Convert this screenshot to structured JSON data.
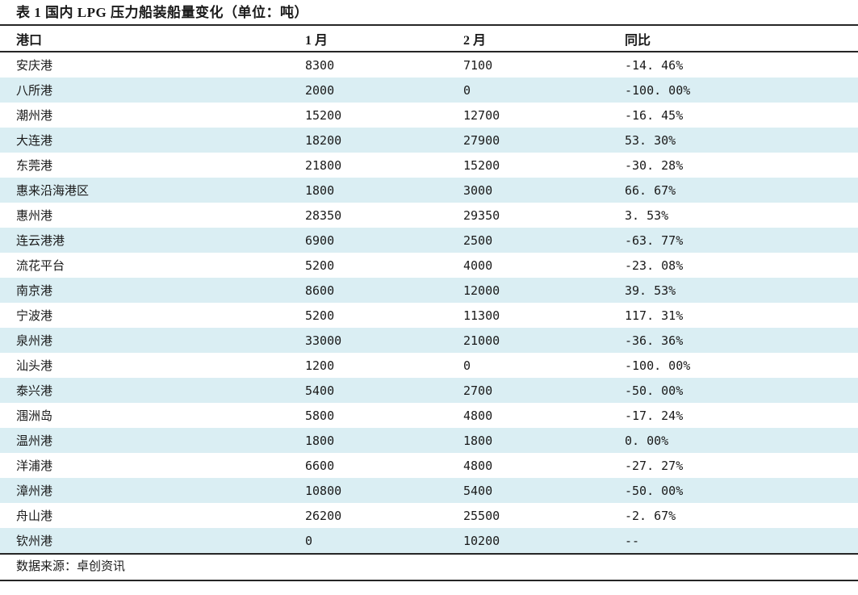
{
  "table": {
    "title": "表 1 国内 LPG 压力船装船量变化（单位：吨）",
    "columns": [
      "港口",
      "1 月",
      "2 月",
      "同比"
    ],
    "rows": [
      [
        "安庆港",
        "8300",
        "7100",
        "-14. 46%"
      ],
      [
        "八所港",
        "2000",
        "0",
        "-100. 00%"
      ],
      [
        "潮州港",
        "15200",
        "12700",
        "-16. 45%"
      ],
      [
        "大连港",
        "18200",
        "27900",
        "53. 30%"
      ],
      [
        "东莞港",
        "21800",
        "15200",
        "-30. 28%"
      ],
      [
        "惠来沿海港区",
        "1800",
        "3000",
        "66. 67%"
      ],
      [
        "惠州港",
        "28350",
        "29350",
        "3. 53%"
      ],
      [
        "连云港港",
        "6900",
        "2500",
        "-63. 77%"
      ],
      [
        "流花平台",
        "5200",
        "4000",
        "-23. 08%"
      ],
      [
        "南京港",
        "8600",
        "12000",
        "39. 53%"
      ],
      [
        "宁波港",
        "5200",
        "11300",
        "117. 31%"
      ],
      [
        "泉州港",
        "33000",
        "21000",
        "-36. 36%"
      ],
      [
        "汕头港",
        "1200",
        "0",
        "-100. 00%"
      ],
      [
        "泰兴港",
        "5400",
        "2700",
        "-50. 00%"
      ],
      [
        "涠洲岛",
        "5800",
        "4800",
        "-17. 24%"
      ],
      [
        "温州港",
        "1800",
        "1800",
        "0. 00%"
      ],
      [
        "洋浦港",
        "6600",
        "4800",
        "-27. 27%"
      ],
      [
        "漳州港",
        "10800",
        "5400",
        "-50. 00%"
      ],
      [
        "舟山港",
        "26200",
        "25500",
        "-2. 67%"
      ],
      [
        "钦州港",
        "0",
        "10200",
        "--"
      ]
    ],
    "source": "数据来源：卓创资讯"
  },
  "colors": {
    "row_alt": "#daeef3",
    "rule": "#262626",
    "text": "#1a1a1a"
  }
}
